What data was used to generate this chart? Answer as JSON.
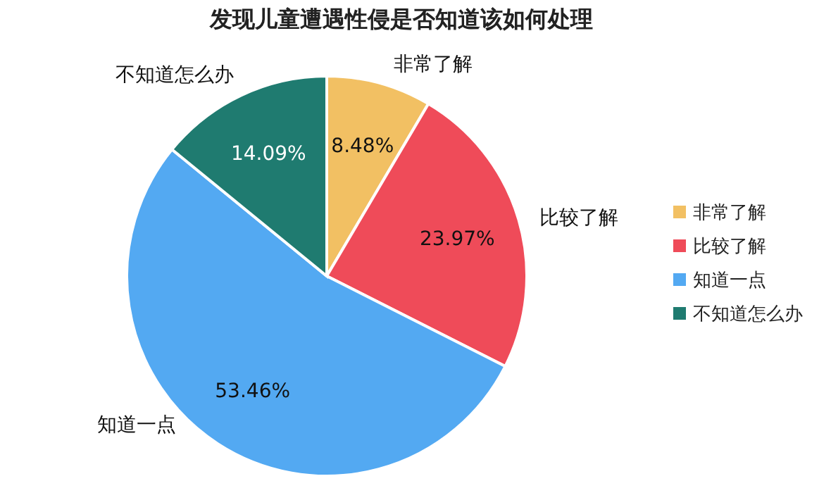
{
  "chart_data": {
    "type": "pie",
    "title": "发现儿童遭遇性侵是否知道该如何处理",
    "categories": [
      "非常了解",
      "比较了解",
      "知道一点",
      "不知道怎么办"
    ],
    "values": [
      8.48,
      23.97,
      53.46,
      14.09
    ],
    "value_labels": [
      "8.48%",
      "23.97%",
      "53.46%",
      "14.09%"
    ],
    "colors": [
      "#f2c063",
      "#ef4b59",
      "#53a9f2",
      "#1f7b70"
    ],
    "legend": "right"
  }
}
